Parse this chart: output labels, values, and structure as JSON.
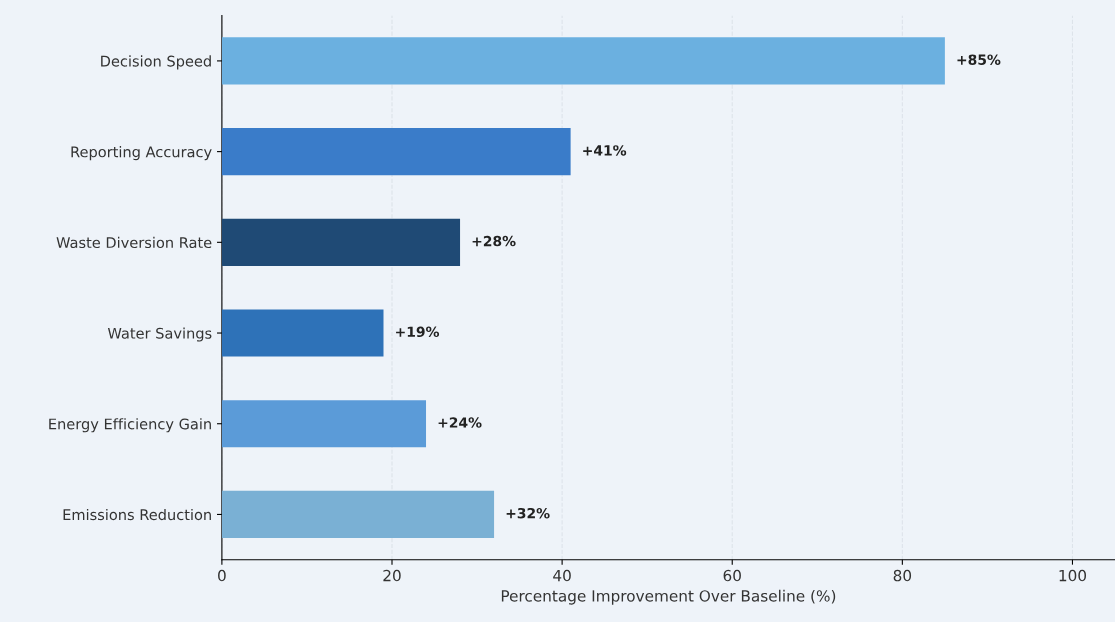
{
  "chart_data": {
    "type": "bar",
    "orientation": "horizontal",
    "xlabel": "Percentage Improvement Over Baseline (%)",
    "categories": [
      "Decision Speed",
      "Reporting Accuracy",
      "Waste Diversion Rate",
      "Water Savings",
      "Energy Efficiency Gain",
      "Emissions Reduction"
    ],
    "values": [
      85,
      41,
      28,
      19,
      24,
      32
    ],
    "colors": [
      "#6bb0e0",
      "#3a7cc9",
      "#1f4a75",
      "#2e72b8",
      "#5b9bd8",
      "#7ab0d4"
    ],
    "value_labels": [
      "+85%",
      "+41%",
      "+28%",
      "+19%",
      "+24%",
      "+32%"
    ],
    "xlim": [
      0,
      105
    ],
    "xticks": [
      0,
      20,
      40,
      60,
      80,
      100
    ],
    "grid": "x",
    "legend": false
  }
}
